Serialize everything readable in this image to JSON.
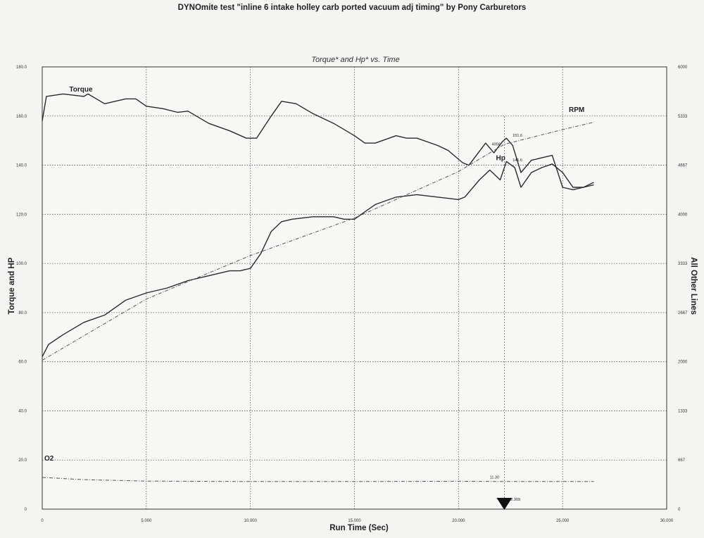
{
  "chart_data": {
    "type": "line",
    "title": "DYNOmite test \"inline 6 intake holley carb ported vacuum adj timing\" by Pony Carburetors",
    "subtitle": "Torque* and Hp* vs. Time",
    "xlabel": "Run Time (Sec)",
    "ylabel": "Torque and HP",
    "ylabel_right": "All Other Lines",
    "xlim": [
      0,
      30
    ],
    "ylim": [
      0,
      180
    ],
    "ylim_right": [
      0,
      6000
    ],
    "x_ticks": [
      "0",
      "5.000",
      "10.000",
      "15.000",
      "20.000",
      "25.000",
      "30.000"
    ],
    "y_ticks": [
      "0",
      "20.0",
      "40.0",
      "60.0",
      "80.0",
      "100.0",
      "120.0",
      "140.0",
      "160.0",
      "180.0"
    ],
    "y_ticks_right": [
      "0",
      "667",
      "1333",
      "2000",
      "2667",
      "3333",
      "4000",
      "4667",
      "5333",
      "6000"
    ],
    "grid": true,
    "series": [
      {
        "name": "Torque",
        "axis": "left",
        "color": "#2a2a2a",
        "x": [
          0,
          0.2,
          1,
          2,
          2.2,
          3,
          4,
          4.5,
          5,
          5.8,
          6.5,
          7,
          8,
          9,
          9.8,
          10.3,
          11,
          11.5,
          12.2,
          13,
          14,
          15,
          15.5,
          16,
          17,
          17.5,
          18,
          19,
          19.5,
          20.2,
          20.5,
          21.3,
          21.7,
          22.1,
          22.3,
          22.6,
          23,
          23.5,
          24,
          24.5,
          25,
          25.5,
          26,
          26.5
        ],
        "y": [
          158,
          168,
          169,
          168,
          169,
          165,
          167,
          167,
          164,
          163,
          161.5,
          162,
          157,
          154,
          151,
          151,
          160,
          166,
          165,
          161,
          157,
          152,
          149,
          149,
          152,
          151,
          151,
          148,
          146,
          141,
          140,
          149,
          145,
          149.5,
          151,
          148,
          137,
          142,
          143,
          144,
          131,
          130,
          131,
          133
        ]
      },
      {
        "name": "Hp",
        "axis": "left",
        "color": "#2a2a2a",
        "x": [
          0,
          0.3,
          1,
          2,
          3,
          4,
          5,
          6,
          7,
          8,
          9,
          9.5,
          10,
          10.5,
          11,
          11.5,
          12,
          13,
          14,
          14.5,
          15,
          15.5,
          16,
          17,
          18,
          19,
          20,
          20.3,
          21,
          21.5,
          22,
          22.3,
          22.7,
          23,
          23.5,
          24,
          24.5,
          25,
          25.5,
          26,
          26.5
        ],
        "y": [
          62,
          67,
          71,
          76,
          79,
          85,
          88,
          90,
          93,
          95,
          97,
          97,
          98,
          104,
          113,
          117,
          118,
          119,
          119,
          118,
          118,
          121,
          124,
          127,
          128,
          127,
          126,
          127,
          134,
          138,
          134,
          141.5,
          139,
          131,
          137,
          139,
          140.5,
          137,
          131,
          131,
          132
        ]
      },
      {
        "name": "RPM",
        "axis": "right",
        "color": "#555555",
        "dashed": true,
        "x": [
          0,
          5,
          10,
          15,
          20,
          22.2,
          25,
          26.5
        ],
        "y": [
          2020,
          2850,
          3440,
          3950,
          4580,
          4950,
          5150,
          5250
        ]
      },
      {
        "name": "O2",
        "axis": "right",
        "color": "#555555",
        "dashed": true,
        "x": [
          0,
          2,
          5,
          10,
          15,
          20,
          22.2,
          26.5
        ],
        "y": [
          430,
          400,
          380,
          375,
          375,
          378,
          375,
          375
        ]
      }
    ],
    "annotations": [
      {
        "text": "151.6",
        "x": 22.6,
        "y": 151.6
      },
      {
        "text": "4956",
        "x": 21.6,
        "y": 148
      },
      {
        "text": "141.6",
        "x": 22.6,
        "y": 141.6
      },
      {
        "text": "11.30",
        "x": 21.5,
        "y": 12.5
      },
      {
        "text": "22.309",
        "x": 22.4,
        "y": 3.5
      }
    ],
    "cursor_x": 22.2,
    "marker": "triangle-down at cursor on x axis"
  }
}
